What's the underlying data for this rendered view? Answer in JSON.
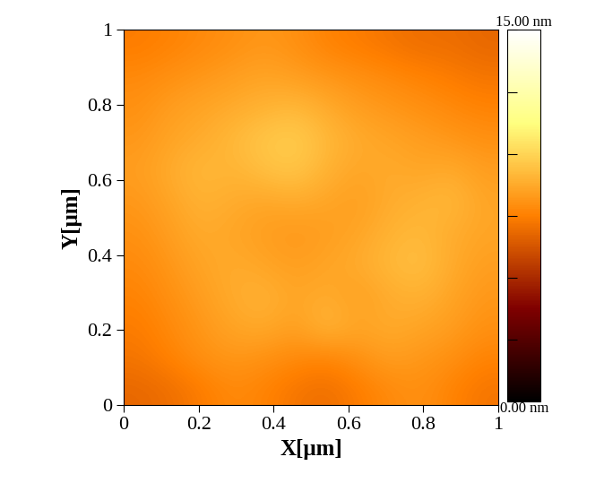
{
  "chart_data": {
    "type": "heatmap",
    "xlabel": "X[μm]",
    "ylabel": "Y[μm]",
    "xlim": [
      0,
      1
    ],
    "ylim": [
      0,
      1
    ],
    "xticks": [
      0,
      0.2,
      0.4,
      0.6,
      0.8,
      1
    ],
    "yticks": [
      0,
      0.2,
      0.4,
      0.6,
      0.8,
      1
    ],
    "cells": [
      [
        6.8,
        7.0,
        7.4,
        7.8,
        7.6,
        7.2,
        7.0,
        7.4,
        7.8,
        8.0,
        7.6,
        7.2
      ],
      [
        7.2,
        7.6,
        8.0,
        8.2,
        8.0,
        7.8,
        7.6,
        8.0,
        8.4,
        8.2,
        8.0,
        7.6
      ],
      [
        7.4,
        7.8,
        8.2,
        8.6,
        8.8,
        8.4,
        9.2,
        8.6,
        8.8,
        8.6,
        8.4,
        8.0
      ],
      [
        7.6,
        8.0,
        8.4,
        8.8,
        9.0,
        8.6,
        8.8,
        8.4,
        8.8,
        9.0,
        8.6,
        8.2
      ],
      [
        7.8,
        8.2,
        8.6,
        8.8,
        8.6,
        8.4,
        8.6,
        8.8,
        9.2,
        9.4,
        8.8,
        8.4
      ],
      [
        8.0,
        8.4,
        8.8,
        8.6,
        8.4,
        8.2,
        8.4,
        8.6,
        9.0,
        9.2,
        8.8,
        8.6
      ],
      [
        8.2,
        8.6,
        9.0,
        8.8,
        8.6,
        8.8,
        8.6,
        8.4,
        8.8,
        9.0,
        9.2,
        8.6
      ],
      [
        8.4,
        8.8,
        9.2,
        9.0,
        9.4,
        9.6,
        9.0,
        8.6,
        8.8,
        8.6,
        8.8,
        8.4
      ],
      [
        8.2,
        8.6,
        8.8,
        9.2,
        9.6,
        9.8,
        9.2,
        8.8,
        8.6,
        8.4,
        8.2,
        8.0
      ],
      [
        8.0,
        8.4,
        8.6,
        8.8,
        9.0,
        9.2,
        8.8,
        8.4,
        8.2,
        8.0,
        7.8,
        7.6
      ],
      [
        7.8,
        8.0,
        8.2,
        8.4,
        8.6,
        8.4,
        8.2,
        8.0,
        7.8,
        7.6,
        7.4,
        7.2
      ],
      [
        7.4,
        7.6,
        7.8,
        8.0,
        8.2,
        8.0,
        7.6,
        7.4,
        7.2,
        7.0,
        7.0,
        6.8
      ]
    ],
    "colorbar_lim": [
      0,
      15
    ],
    "colorbar_ticks": [
      {
        "value": 0,
        "label": "0.00 nm"
      },
      {
        "value": 15,
        "label": "15.00 nm"
      }
    ],
    "colorbar_minor_ticks": [
      2.5,
      5,
      7.5,
      10,
      12.5
    ]
  }
}
